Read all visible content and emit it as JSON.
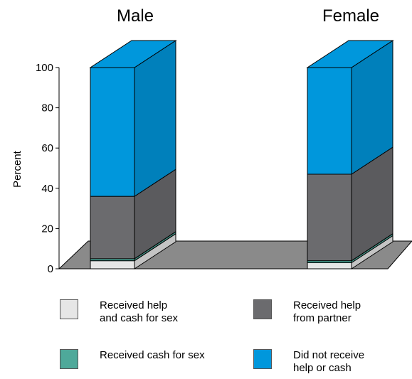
{
  "chart_data": {
    "type": "bar",
    "stacked": true,
    "three_d": true,
    "categories": [
      "Male",
      "Female"
    ],
    "ylabel": "Percent",
    "ylim": [
      0,
      100
    ],
    "yticks": [
      0,
      20,
      40,
      60,
      80,
      100
    ],
    "grid": false,
    "legend_placement": "bottom",
    "series": [
      {
        "name": "Received help\nand cash for sex",
        "color": "#e6e6e6",
        "values": [
          4,
          3
        ]
      },
      {
        "name": "Received cash for sex",
        "color": "#4ea99a",
        "values": [
          1,
          1
        ]
      },
      {
        "name": "Received help\nfrom partner",
        "color": "#6b6b6e",
        "values": [
          31,
          43
        ]
      },
      {
        "name": "Did not receive\nhelp or cash",
        "color": "#0097dc",
        "values": [
          64,
          53
        ]
      }
    ]
  }
}
